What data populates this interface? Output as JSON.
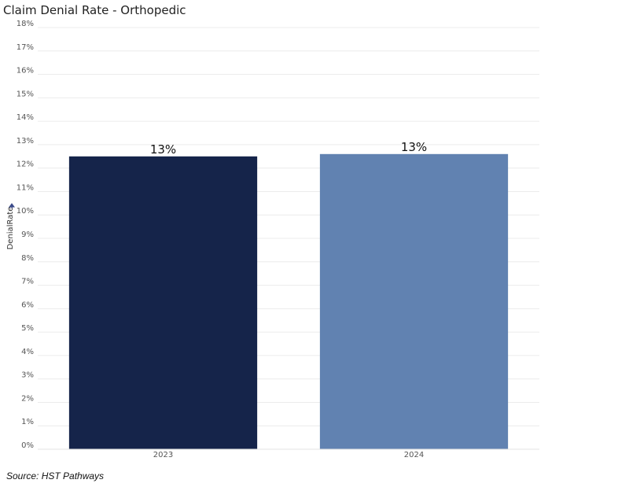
{
  "chart_data": {
    "type": "bar",
    "title": "Claim Denial Rate - Orthopedic",
    "ylabel": "DenialRate",
    "xlabel": "",
    "categories": [
      "2023",
      "2024"
    ],
    "values": [
      12.5,
      12.6
    ],
    "data_labels": [
      "13%",
      "13%"
    ],
    "colors": [
      "#15244a",
      "#6182b1"
    ],
    "ylim": [
      0,
      18
    ],
    "yticks": [
      0,
      1,
      2,
      3,
      4,
      5,
      6,
      7,
      8,
      9,
      10,
      11,
      12,
      13,
      14,
      15,
      16,
      17,
      18
    ],
    "ytick_suffix": "%",
    "grid": true
  },
  "source": "Source: HST Pathways",
  "icons": {
    "sort": "sort-arrow-icon"
  }
}
